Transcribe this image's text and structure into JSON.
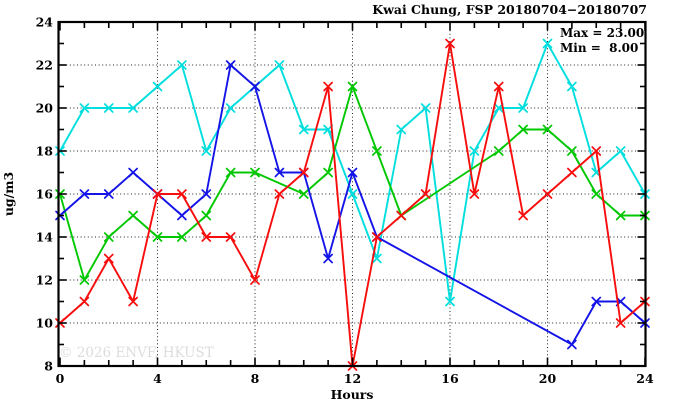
{
  "title": "Kwai Chung, FSP 20180704−20180707",
  "watermark": "© 2026 ENVF, HKUST",
  "annotation": {
    "max_label": "Max = 23.00",
    "min_label": "Min =  8.00"
  },
  "chart_data": {
    "type": "line",
    "title": "Kwai Chung, FSP 20180704−20180707",
    "xlabel": "Hours",
    "ylabel": "ug/m3",
    "xlim": [
      0,
      24
    ],
    "ylim": [
      8,
      24
    ],
    "x_ticks": [
      0,
      4,
      8,
      12,
      16,
      20,
      24
    ],
    "y_ticks": [
      8,
      10,
      12,
      14,
      16,
      18,
      20,
      22,
      24
    ],
    "x_minor_step": 1,
    "y_minor_step": 1,
    "grid": true,
    "legend": "none",
    "x": [
      0,
      1,
      2,
      3,
      4,
      5,
      6,
      7,
      8,
      9,
      10,
      11,
      12,
      13,
      14,
      15,
      16,
      17,
      18,
      19,
      20,
      21,
      22,
      23,
      24
    ],
    "series": [
      {
        "name": "cyan-series",
        "color": "#00dede",
        "values": [
          18,
          20,
          20,
          20,
          21,
          22,
          18,
          20,
          21,
          22,
          19,
          19,
          16,
          13,
          19,
          20,
          11,
          18,
          20,
          20,
          23,
          21,
          17,
          18,
          16
        ]
      },
      {
        "name": "green-series",
        "color": "#00c800",
        "values": [
          16,
          12,
          14,
          15,
          14,
          14,
          15,
          17,
          17,
          null,
          16,
          17,
          21,
          18,
          15,
          null,
          null,
          null,
          18,
          19,
          19,
          18,
          16,
          15,
          15
        ]
      },
      {
        "name": "blue-series",
        "color": "#1414e8",
        "values": [
          15,
          16,
          16,
          17,
          16,
          15,
          16,
          22,
          21,
          17,
          17,
          13,
          17,
          14,
          null,
          null,
          null,
          null,
          null,
          null,
          null,
          9,
          11,
          11,
          10
        ]
      },
      {
        "name": "red-series",
        "color": "#f80d0d",
        "values": [
          10,
          11,
          13,
          11,
          16,
          16,
          14,
          14,
          12,
          16,
          17,
          21,
          8,
          14,
          15,
          16,
          23,
          16,
          21,
          15,
          16,
          17,
          18,
          10,
          11
        ]
      }
    ],
    "stats": {
      "max": 23.0,
      "min": 8.0
    }
  }
}
